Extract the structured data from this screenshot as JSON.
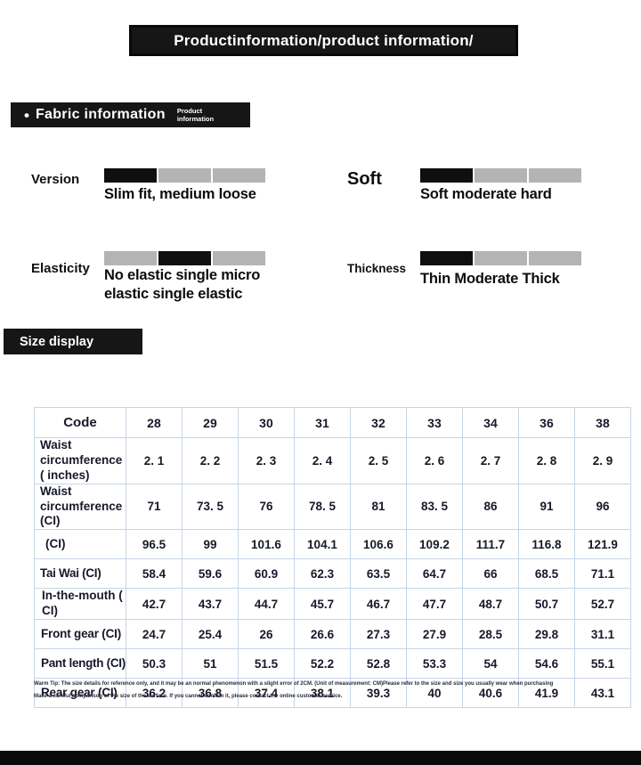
{
  "header": {
    "title": "Productinformation/product information/"
  },
  "fabric_section": {
    "bullet": "•",
    "title": "Fabric information",
    "subtitle_line1": "Product",
    "subtitle_line2": "information",
    "colors": {
      "active_bar": "#0f0f0f",
      "inactive_bar": "#b4b4b4"
    },
    "attributes": [
      {
        "label": "Version",
        "caption": "Slim fit, medium loose",
        "segments": [
          "black",
          "gray",
          "gray"
        ]
      },
      {
        "label": "Soft",
        "caption": "Soft moderate hard",
        "segments": [
          "black",
          "gray",
          "gray"
        ]
      },
      {
        "label": "Elasticity",
        "caption": "No elastic single micro elastic single elastic",
        "segments": [
          "gray",
          "black",
          "gray"
        ]
      },
      {
        "label": "Thickness",
        "caption": "Thin Moderate Thick",
        "segments": [
          "black",
          "gray",
          "gray"
        ]
      }
    ]
  },
  "size_section": {
    "title": "Size display",
    "table": {
      "columns": [
        "Code",
        "28",
        "29",
        "30",
        "31",
        "32",
        "33",
        "34",
        "36",
        "38"
      ],
      "rows": [
        {
          "label": "Waist circumference ( inches)",
          "values": [
            "2. 1",
            "2. 2",
            "2. 3",
            "2. 4",
            "2. 5",
            "2. 6",
            "2. 7",
            "2. 8",
            "2. 9"
          ]
        },
        {
          "label": "Waist circumference (CI)",
          "values": [
            "71",
            "73. 5",
            "76",
            "78. 5",
            "81",
            "83. 5",
            "86",
            "91",
            "96"
          ]
        },
        {
          "label": "(CI)",
          "values": [
            "96.5",
            "99",
            "101.6",
            "104.1",
            "106.6",
            "109.2",
            "111.7",
            "116.8",
            "121.9"
          ]
        },
        {
          "label": "Tai Wai (CI)",
          "values": [
            "58.4",
            "59.6",
            "60.9",
            "62.3",
            "63.5",
            "64.7",
            "66",
            "68.5",
            "71.1"
          ]
        },
        {
          "label": "In-the-mouth ( CI)",
          "values": [
            "42.7",
            "43.7",
            "44.7",
            "45.7",
            "46.7",
            "47.7",
            "48.7",
            "50.7",
            "52.7"
          ]
        },
        {
          "label": "Front gear (CI)",
          "values": [
            "24.7",
            "25.4",
            "26",
            "26.6",
            "27.3",
            "27.9",
            "28.5",
            "29.8",
            "31.1"
          ]
        },
        {
          "label": "Pant length (CI)",
          "values": [
            "50.3",
            "51",
            "51.5",
            "52.2",
            "52.8",
            "53.3",
            "54",
            "54.6",
            "55.1"
          ]
        },
        {
          "label": "Rear gear (CI)",
          "values": [
            "36.2",
            "36.8",
            "37.4",
            "38.1",
            "39.3",
            "40",
            "40.6",
            "41.9",
            "43.1"
          ]
        }
      ]
    },
    "notes": [
      "Warm Tip: The size details for reference only, and it may be an normal phenomenon with a slight error of 2CM. (Unit of measurement: CM)Please refer to the size and size you usually wear when purchasing",
      "Make a careful comparison of the size of the surface. If you cannot confirm it, please contact the online customer service."
    ]
  }
}
